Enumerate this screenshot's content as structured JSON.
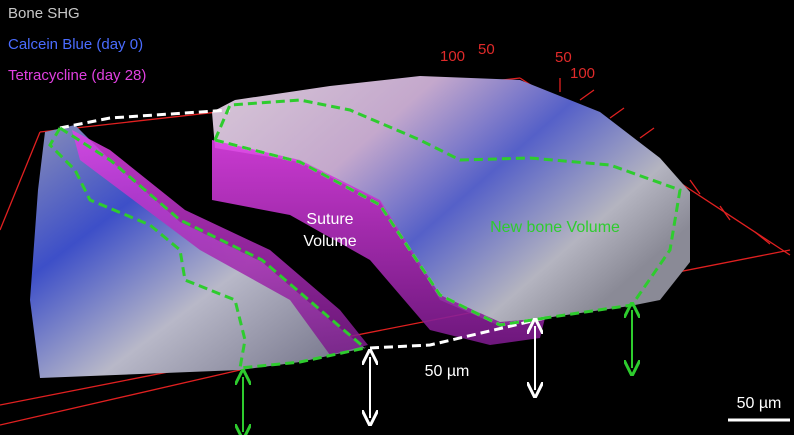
{
  "legend": [
    "Bone SHG",
    "Calcein Blue (day 0)",
    "Tetracycline (day 28)"
  ],
  "axis_labels": [
    "100",
    "50",
    "50",
    "100"
  ],
  "annotations": {
    "suture_volume": [
      "Suture",
      "Volume"
    ],
    "new_bone": "New bone Volume",
    "depth": "50 µm"
  },
  "scale_bar": "50 µm"
}
